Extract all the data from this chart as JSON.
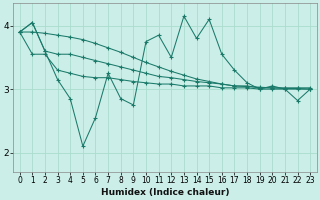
{
  "title": "",
  "xlabel": "Humidex (Indice chaleur)",
  "bg_color": "#cceee8",
  "grid_color": "#aaddcc",
  "line_color": "#1a7a6a",
  "xlim": [
    -0.5,
    23.5
  ],
  "ylim": [
    1.7,
    4.35
  ],
  "yticks": [
    2,
    3,
    4
  ],
  "xticks": [
    0,
    1,
    2,
    3,
    4,
    5,
    6,
    7,
    8,
    9,
    10,
    11,
    12,
    13,
    14,
    15,
    16,
    17,
    18,
    19,
    20,
    21,
    22,
    23
  ],
  "series_main": [
    3.9,
    4.05,
    3.6,
    3.15,
    2.85,
    2.1,
    2.55,
    3.25,
    2.85,
    2.75,
    3.75,
    3.85,
    3.5,
    4.15,
    3.8,
    4.1,
    3.55,
    3.3,
    3.1,
    3.0,
    3.05,
    3.0,
    2.82,
    3.0
  ],
  "series_upper": [
    3.9,
    4.05,
    3.6,
    3.55,
    3.55,
    3.5,
    3.45,
    3.4,
    3.35,
    3.3,
    3.25,
    3.2,
    3.18,
    3.15,
    3.12,
    3.1,
    3.08,
    3.05,
    3.05,
    3.02,
    3.02,
    3.02,
    3.02,
    3.02
  ],
  "series_lower": [
    3.9,
    3.55,
    3.55,
    3.3,
    3.25,
    3.2,
    3.18,
    3.18,
    3.15,
    3.12,
    3.1,
    3.08,
    3.08,
    3.05,
    3.05,
    3.05,
    3.02,
    3.02,
    3.02,
    3.0,
    3.0,
    3.0,
    3.0,
    3.0
  ],
  "series_flat": [
    3.9,
    3.9,
    3.88,
    3.85,
    3.82,
    3.78,
    3.72,
    3.65,
    3.58,
    3.5,
    3.42,
    3.35,
    3.28,
    3.22,
    3.16,
    3.12,
    3.08,
    3.05,
    3.04,
    3.03,
    3.02,
    3.01,
    3.01,
    3.0
  ]
}
